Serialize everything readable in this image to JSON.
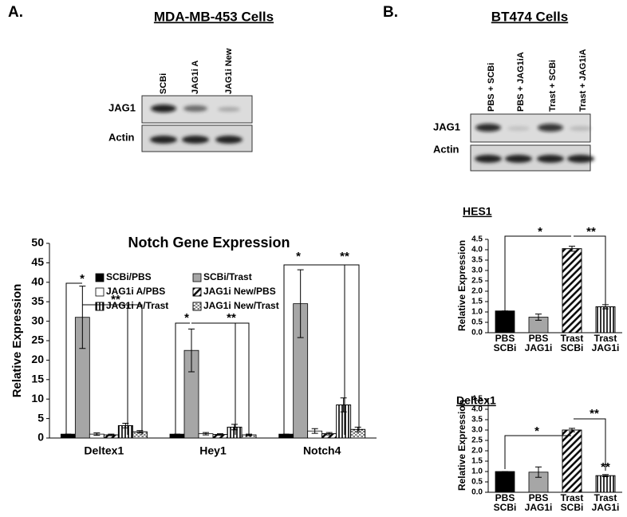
{
  "panel_a": {
    "label": "A.",
    "title": "MDA-MB-453 Cells",
    "lanes": [
      "SCBi",
      "JAG1i A",
      "JAG1i New"
    ],
    "rows": [
      "JAG1",
      "Actin"
    ]
  },
  "panel_b": {
    "label": "B.",
    "title": "BT474 Cells",
    "lanes": [
      "PBS + SCBi",
      "PBS + JAG1iA",
      "Trast + SCBi",
      "Trast + JAG1iA"
    ],
    "rows": [
      "JAG1",
      "Actin"
    ]
  },
  "chart_data": [
    {
      "type": "bar",
      "title": "Notch Gene Expression",
      "y_label": "Relative Expression",
      "categories": [
        "Deltex1",
        "Hey1",
        "Notch4"
      ],
      "series": [
        {
          "name": "SCBi/PBS",
          "color": "#000000",
          "pattern": "solid",
          "values": [
            1,
            1,
            1
          ],
          "errors": [
            0,
            0,
            0
          ]
        },
        {
          "name": "SCBi/Trast",
          "color": "#a6a6a6",
          "pattern": "solid",
          "values": [
            31,
            22.5,
            34.5
          ],
          "errors": [
            8,
            5.5,
            8.7
          ]
        },
        {
          "name": "JAG1i A/PBS",
          "color": "#ffffff",
          "pattern": "solid",
          "values": [
            1,
            1.1,
            1.8
          ],
          "errors": [
            0.3,
            0.3,
            0.6
          ]
        },
        {
          "name": "JAG1i New/PBS",
          "color": "#ffffff",
          "pattern": "diagonal",
          "values": [
            0.8,
            0.9,
            1.1
          ],
          "errors": [
            0.2,
            0.2,
            0.3
          ]
        },
        {
          "name": "JAG1i A/Trast",
          "color": "#ffffff",
          "pattern": "vertical",
          "values": [
            3.2,
            2.8,
            8.5
          ],
          "errors": [
            0.6,
            0.7,
            1.8
          ]
        },
        {
          "name": "JAG1i New/Trast",
          "color": "#ffffff",
          "pattern": "dots",
          "values": [
            1.6,
            0.8,
            2.2
          ],
          "errors": [
            0.3,
            0.2,
            0.6
          ]
        }
      ],
      "ylim": [
        0,
        50
      ],
      "yticks": [
        0,
        5,
        10,
        15,
        20,
        25,
        30,
        35,
        40,
        45,
        50
      ],
      "legend": "top",
      "annotations": [
        "*",
        "**",
        "*",
        "**",
        "*",
        "**"
      ]
    },
    {
      "type": "bar",
      "title": "HES1",
      "y_label": "Relative Expression",
      "categories": [
        [
          "PBS",
          "SCBi"
        ],
        [
          "PBS",
          "JAG1i"
        ],
        [
          "Trast",
          "SCBi"
        ],
        [
          "Trast",
          "JAG1i"
        ]
      ],
      "values": [
        1.05,
        0.75,
        4.05,
        1.25
      ],
      "errors": [
        0,
        0.15,
        0.12,
        0.1
      ],
      "colors": [
        "#000000",
        "#a6a6a6",
        "#ffffff",
        "#ffffff"
      ],
      "patterns": [
        "solid",
        "solid",
        "diagonal",
        "vertical"
      ],
      "ylim": [
        0,
        4.5
      ],
      "yticks": [
        {
          "value": 0,
          "label": "0.0"
        },
        0.5,
        {
          "value": 1,
          "label": "1.0"
        },
        1.5,
        {
          "value": 2,
          "label": "2.0"
        },
        2.5,
        {
          "value": 3,
          "label": "3.0"
        },
        3.5,
        {
          "value": 4,
          "label": "4.0"
        },
        4.5
      ],
      "annotations": [
        "*",
        "**"
      ]
    },
    {
      "type": "bar",
      "title": "Deltex1",
      "y_label": "Relative Expression",
      "categories": [
        [
          "PBS",
          "SCBi"
        ],
        [
          "PBS",
          "JAG1i"
        ],
        [
          "Trast",
          "SCBi"
        ],
        [
          "Trast",
          "JAG1i"
        ]
      ],
      "values": [
        1,
        0.97,
        3,
        0.8
      ],
      "errors": [
        0,
        0.25,
        0.08,
        0.05
      ],
      "colors": [
        "#000000",
        "#a6a6a6",
        "#ffffff",
        "#ffffff"
      ],
      "patterns": [
        "solid",
        "solid",
        "diagonal",
        "vertical"
      ],
      "ylim": [
        0,
        4.5
      ],
      "yticks": [
        {
          "value": 0,
          "label": "0.0"
        },
        0.5,
        {
          "value": 1,
          "label": "1.0"
        },
        1.5,
        {
          "value": 2,
          "label": "2.0"
        },
        2.5,
        {
          "value": 3,
          "label": "3.0"
        },
        3.5,
        {
          "value": 4,
          "label": "4.0"
        },
        4.5
      ],
      "annotations": [
        "*",
        "**",
        "**"
      ]
    }
  ]
}
